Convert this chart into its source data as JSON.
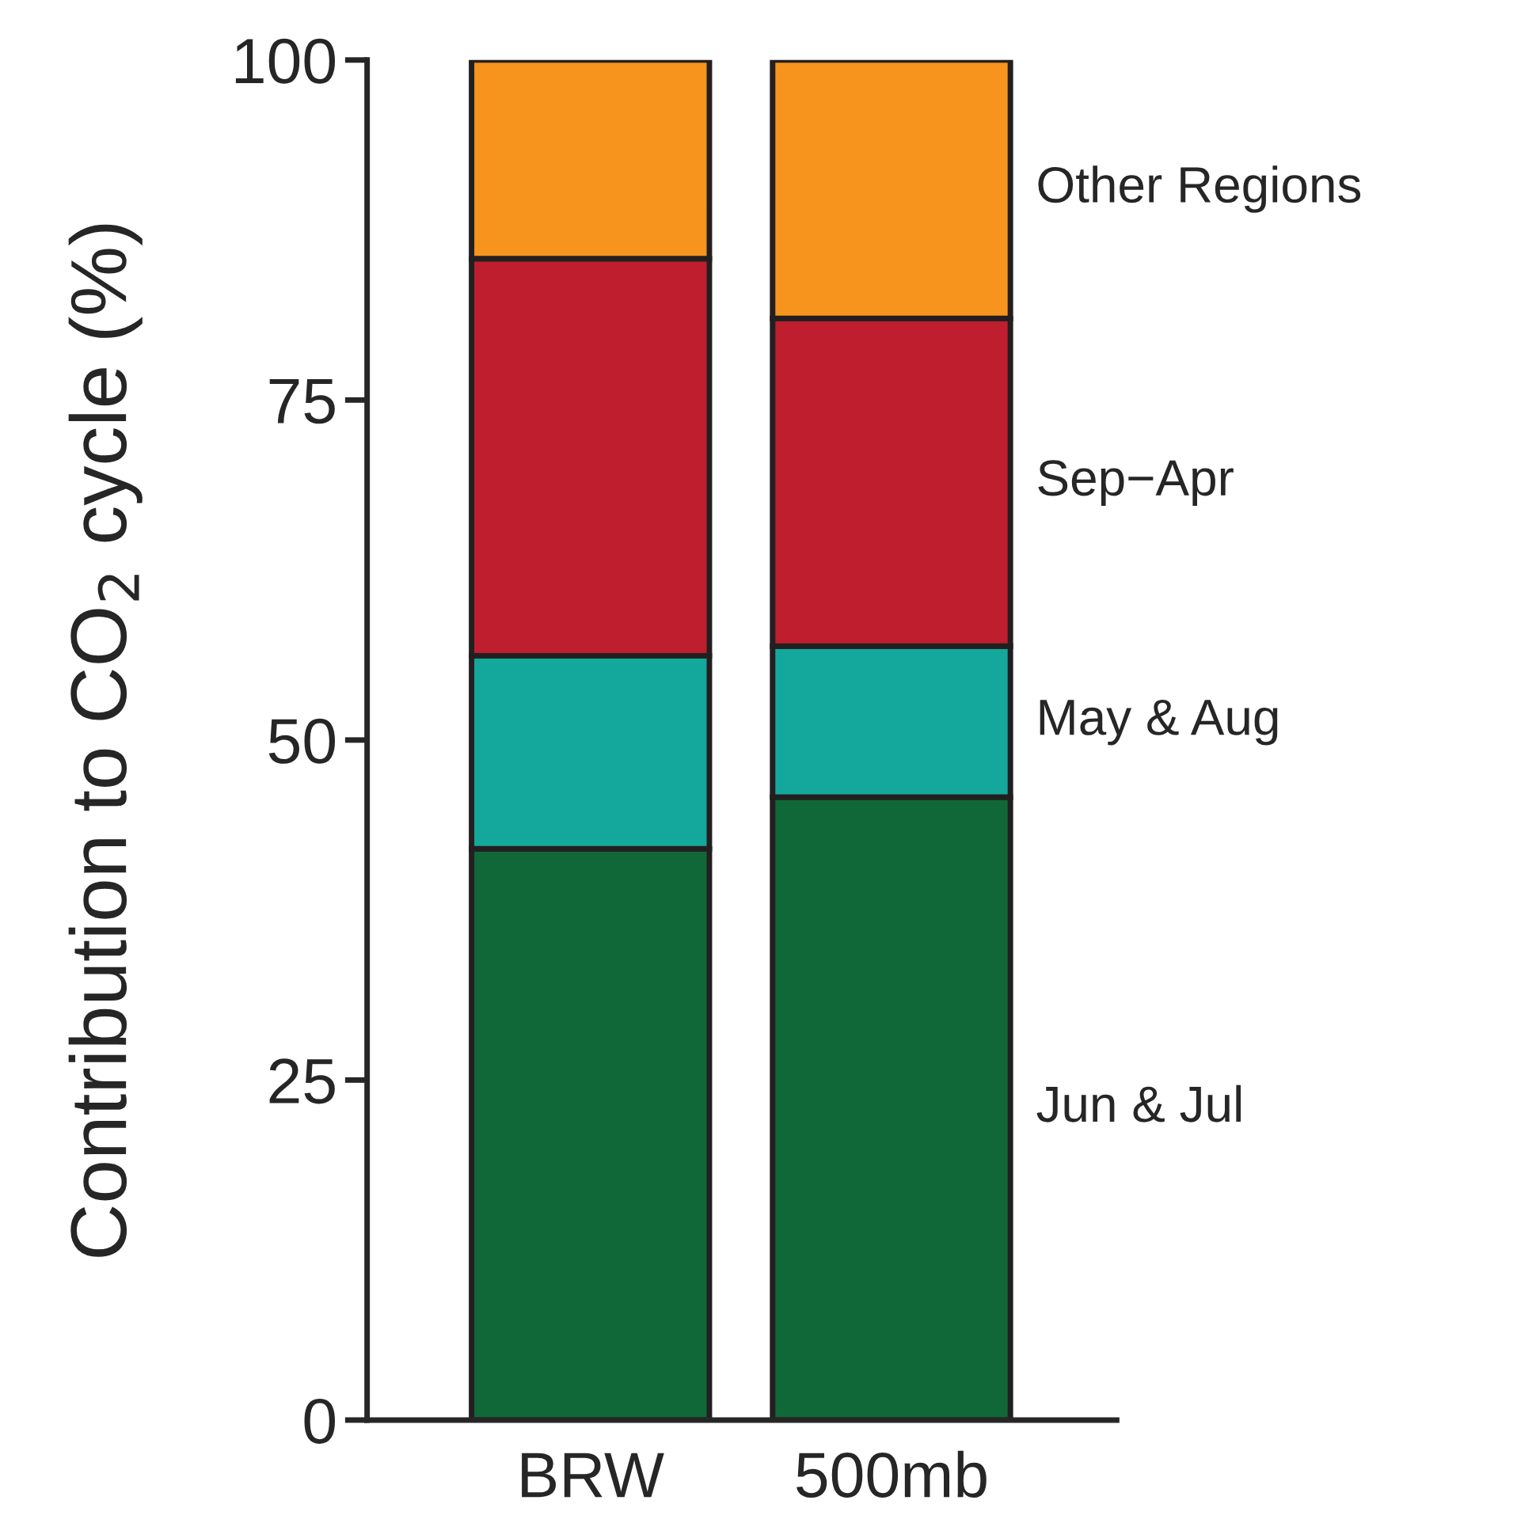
{
  "chart_data": {
    "type": "bar",
    "stacked": true,
    "ylabel": "Contribution to CO$_{2}$ cycle (%)",
    "categories": [
      "BRW",
      "500mb"
    ],
    "series": [
      {
        "name": "Jun & Jul",
        "color": "#106838",
        "values": [
          42.0,
          45.8
        ]
      },
      {
        "name": "May & Aug",
        "color": "#14a89c",
        "values": [
          14.2,
          11.1
        ]
      },
      {
        "name": "Sep−Apr",
        "color": "#be1e2d",
        "values": [
          29.2,
          24.1
        ]
      },
      {
        "name": "Other Regions",
        "color": "#f7941d",
        "values": [
          14.6,
          19.0
        ]
      }
    ],
    "ylim": [
      0,
      100
    ],
    "yticks": [
      0,
      25,
      50,
      75,
      100
    ],
    "grid": false,
    "legend": false
  }
}
